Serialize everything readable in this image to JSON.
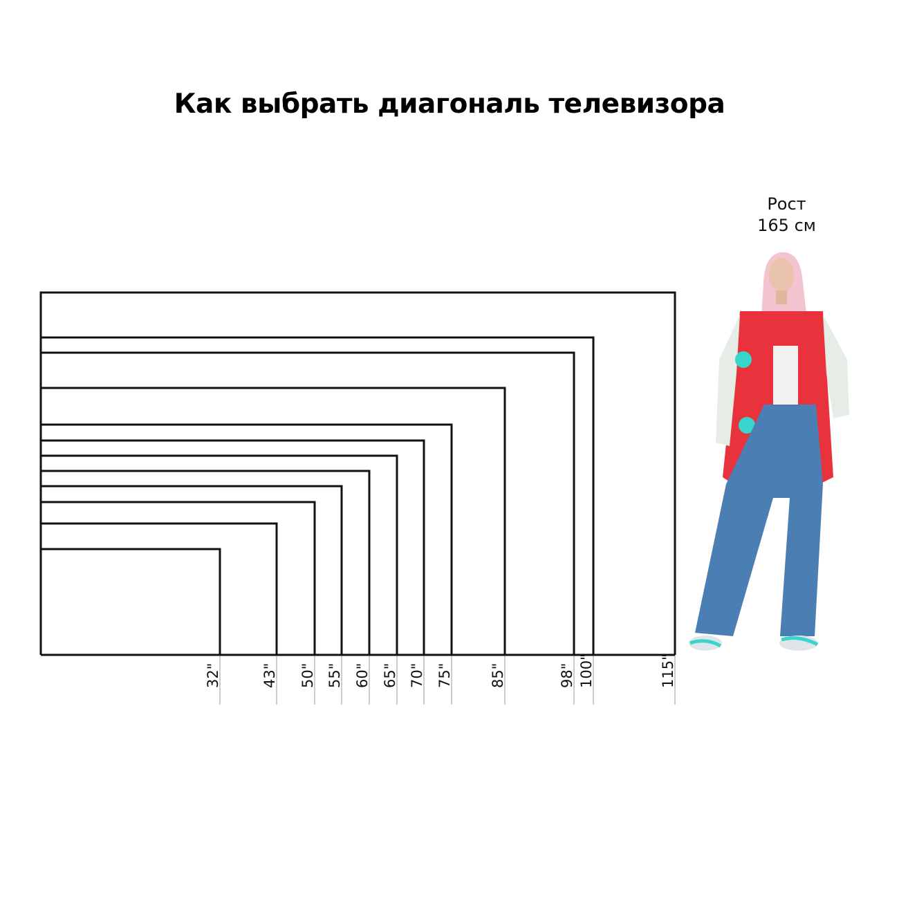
{
  "title": "Как выбрать диагональ телевизора",
  "person": {
    "label_line1": "Рост",
    "label_line2": "165 см",
    "height_cm": 165,
    "colors": {
      "jacket": "#e8323c",
      "sleeves": "#e6ece6",
      "jeans": "#4b7fb3",
      "hair": "#f2b7c4",
      "accent": "#37d6cc"
    }
  },
  "diagram": {
    "unit_mark": "\"",
    "diagonals": [
      115,
      100,
      98,
      85,
      75,
      70,
      65,
      60,
      55,
      50,
      43,
      32
    ],
    "labels": [
      "115\"",
      "100\"",
      "98\"",
      "85\"",
      "75\"",
      "70\"",
      "65\"",
      "60\"",
      "55\"",
      "50\"",
      "43\"",
      "32\""
    ],
    "line_color": "#111111",
    "guide_color": "#9a9a9a"
  }
}
